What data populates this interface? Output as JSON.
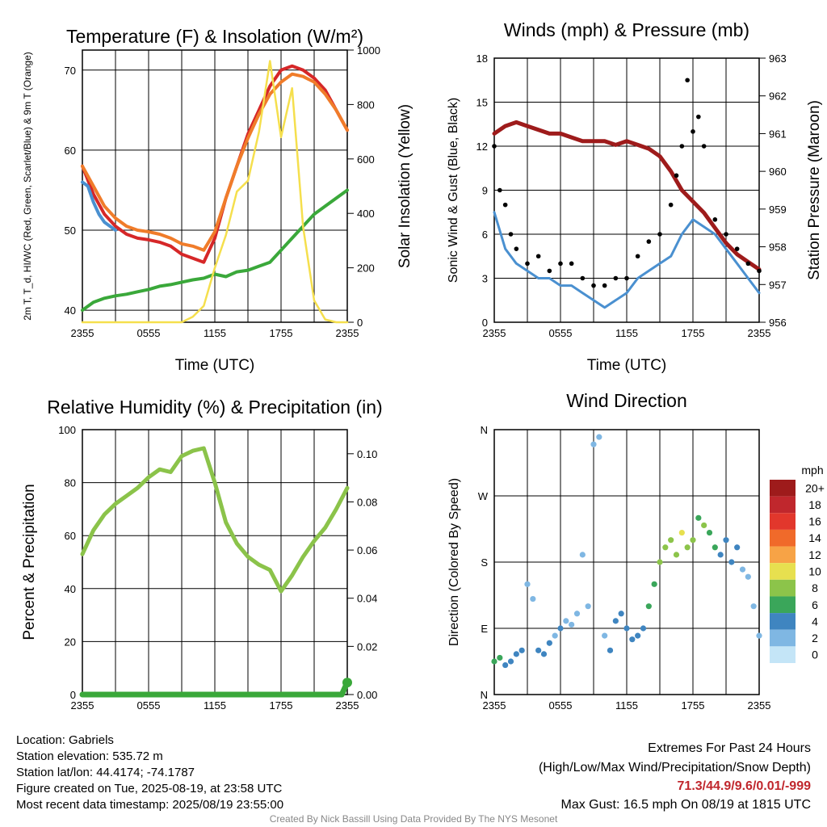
{
  "chart_data": [
    {
      "type": "line",
      "title": "Temperature (F) & Insolation (W/m²)",
      "xlabel": "Time (UTC)",
      "ylabel": "2m T, T_d, HI/WC (Red, Green, Scarlet/Blue) & 9m T (Orange)",
      "y2label": "Solar Insolation (Yellow)",
      "x_ticks": [
        "2355",
        "0555",
        "1155",
        "1755",
        "2355"
      ],
      "y_ticks": [
        40,
        50,
        60,
        70
      ],
      "y2_ticks": [
        0,
        200,
        400,
        600,
        800,
        1000
      ],
      "ylim": [
        38.5,
        72.5
      ],
      "y2lim": [
        0,
        1000
      ],
      "grid": true,
      "series": [
        {
          "color": "#d62728",
          "axis": "left",
          "x": [
            0,
            1,
            2,
            3,
            4,
            5,
            6,
            7,
            8,
            9,
            10,
            11,
            12,
            13,
            14,
            15,
            16,
            17,
            18,
            19,
            20,
            21,
            22,
            23,
            24
          ],
          "values": [
            58,
            54.5,
            52,
            50.5,
            49.5,
            49,
            48.8,
            48.5,
            48,
            47,
            46.5,
            46,
            49,
            54,
            58,
            62,
            65,
            68,
            70,
            70.5,
            70,
            69,
            67.5,
            65,
            62.5
          ]
        },
        {
          "color": "#f07c2a",
          "axis": "left",
          "x": [
            0,
            1,
            2,
            3,
            4,
            5,
            6,
            7,
            8,
            9,
            10,
            11,
            12,
            13,
            14,
            15,
            16,
            17,
            18,
            19,
            20,
            21,
            22,
            23,
            24
          ],
          "values": [
            58,
            55.5,
            53,
            51.5,
            50.5,
            50,
            49.8,
            49.5,
            49,
            48.3,
            48,
            47.5,
            49.8,
            54,
            58,
            61.5,
            64.5,
            67,
            68.5,
            69.5,
            69.2,
            68.5,
            67,
            65,
            62.5
          ]
        },
        {
          "color": "#3aa83a",
          "axis": "left",
          "x": [
            0,
            1,
            2,
            3,
            4,
            5,
            6,
            7,
            8,
            9,
            10,
            11,
            12,
            13,
            14,
            15,
            16,
            17,
            18,
            19,
            20,
            21,
            22,
            23,
            24
          ],
          "values": [
            40,
            41,
            41.5,
            41.8,
            42,
            42.3,
            42.6,
            43,
            43.2,
            43.5,
            43.8,
            44,
            44.5,
            44.2,
            44.8,
            45,
            45.5,
            46,
            47.5,
            49,
            50.5,
            52,
            53,
            54,
            55
          ]
        },
        {
          "color": "#4a90d0",
          "axis": "left",
          "x": [
            0,
            0.5,
            1,
            1.5,
            2,
            3
          ],
          "values": [
            56,
            55.5,
            53.5,
            52,
            51,
            50
          ]
        },
        {
          "color": "#f5df4d",
          "axis": "right",
          "x": [
            0,
            1,
            2,
            3,
            4,
            5,
            6,
            7,
            8,
            9,
            10,
            11,
            12,
            13,
            14,
            15,
            16,
            17,
            18,
            19,
            20,
            21,
            22,
            23,
            24
          ],
          "values": [
            0,
            0,
            0,
            0,
            0,
            0,
            0,
            0,
            0,
            0,
            20,
            60,
            200,
            320,
            480,
            520,
            700,
            960,
            680,
            860,
            350,
            80,
            10,
            0,
            0
          ]
        }
      ]
    },
    {
      "type": "line",
      "title": "Winds (mph) & Pressure (mb)",
      "xlabel": "Time (UTC)",
      "ylabel": "Sonic Wind & Gust (Blue, Black)",
      "y2label": "Station Pressure (Maroon)",
      "x_ticks": [
        "2355",
        "0555",
        "1155",
        "1755",
        "2355"
      ],
      "y_ticks": [
        0,
        3,
        6,
        9,
        12,
        15,
        18
      ],
      "y2_ticks": [
        956,
        957,
        958,
        959,
        960,
        961,
        962,
        963
      ],
      "ylim": [
        0,
        18
      ],
      "y2lim": [
        956,
        963
      ],
      "grid": true,
      "series": [
        {
          "name": "",
          "color": "#9e1b1b",
          "axis": "right",
          "x": [
            0,
            1,
            2,
            3,
            4,
            5,
            6,
            7,
            8,
            9,
            10,
            11,
            12,
            13,
            14,
            15,
            16,
            17,
            18,
            19,
            20,
            21,
            22,
            23,
            24
          ],
          "values": [
            961,
            961.2,
            961.3,
            961.2,
            961.1,
            961,
            961,
            960.9,
            960.8,
            960.8,
            960.8,
            960.7,
            960.8,
            960.7,
            960.6,
            960.4,
            960,
            959.5,
            959.2,
            958.9,
            958.5,
            958.1,
            957.8,
            957.6,
            957.4
          ]
        },
        {
          "name": "",
          "color": "#4a90d0",
          "axis": "left",
          "x": [
            0,
            1,
            2,
            3,
            4,
            5,
            6,
            7,
            8,
            9,
            10,
            11,
            12,
            13,
            14,
            15,
            16,
            17,
            18,
            19,
            20,
            21,
            22,
            23,
            24
          ],
          "values": [
            7.5,
            5,
            4,
            3.5,
            3,
            3,
            2.5,
            2.5,
            2,
            1.5,
            1,
            1.5,
            2,
            3,
            3.5,
            4,
            4.5,
            6,
            7,
            6.5,
            6,
            5,
            4,
            3,
            2
          ]
        },
        {
          "name": "",
          "color": "#000000",
          "axis": "left",
          "mode": "points",
          "x": [
            0,
            0.5,
            1,
            1.5,
            2,
            3,
            4,
            5,
            6,
            7,
            8,
            9,
            10,
            11,
            12,
            13,
            14,
            15,
            16,
            16.5,
            17,
            17.5,
            18,
            18.5,
            19,
            20,
            21,
            22,
            23,
            24
          ],
          "values": [
            12,
            9,
            8,
            6,
            5,
            4,
            4.5,
            3.5,
            4,
            4,
            3,
            2.5,
            2.5,
            3,
            3,
            4.5,
            5.5,
            6,
            8,
            10,
            12,
            16.5,
            13,
            14,
            12,
            7,
            6,
            5,
            4,
            3.5
          ]
        }
      ]
    },
    {
      "type": "line",
      "title": "Relative Humidity (%) & Precipitation (in)",
      "ylabel": "Percent & Precipitation",
      "x_ticks": [
        "2355",
        "0555",
        "1155",
        "1755",
        "2355"
      ],
      "y_ticks": [
        0,
        20,
        40,
        60,
        80,
        100
      ],
      "y2_ticks": [
        "0.00",
        "0.02",
        "0.04",
        "0.06",
        "0.08",
        "0.10"
      ],
      "ylim": [
        0,
        100
      ],
      "y2lim": [
        0,
        0.11
      ],
      "grid": true,
      "series": [
        {
          "name": "",
          "color": "#8bc34a",
          "axis": "left",
          "x": [
            0,
            1,
            2,
            3,
            4,
            5,
            6,
            7,
            8,
            9,
            10,
            11,
            12,
            13,
            14,
            15,
            16,
            17,
            18,
            19,
            20,
            21,
            22,
            23,
            24
          ],
          "values": [
            53,
            62,
            68,
            72,
            75,
            78,
            82,
            85,
            84,
            90,
            92,
            93,
            80,
            65,
            57,
            52,
            49,
            47,
            39,
            45,
            52,
            58,
            63,
            70,
            78
          ]
        },
        {
          "name": "",
          "color": "#3aa83a",
          "axis": "right",
          "x": [
            0,
            23.5,
            24
          ],
          "values": [
            0,
            0,
            0.005
          ]
        }
      ]
    },
    {
      "type": "scatter",
      "title": "Wind Direction",
      "ylabel": "Direction (Colored By Speed)",
      "x_ticks": [
        "2355",
        "0555",
        "1155",
        "1755",
        "2355"
      ],
      "y_ticks": [
        "N",
        "E",
        "S",
        "W",
        "N"
      ],
      "ylim": [
        0,
        360
      ],
      "grid": true,
      "legend": {
        "title": "mph",
        "labels": [
          "20+",
          "18",
          "16",
          "14",
          "12",
          "10",
          "8",
          "6",
          "4",
          "2",
          "0"
        ],
        "colors": [
          "#9e1b1b",
          "#c0272d",
          "#e2372c",
          "#f06a2a",
          "#f7a346",
          "#e7e04f",
          "#8cc44a",
          "#3aa65a",
          "#3f85c0",
          "#7fb7e3",
          "#c4e5f7"
        ]
      },
      "points": {
        "x": [
          0,
          0.5,
          1,
          1.5,
          2,
          2.5,
          3,
          3.5,
          4,
          4.5,
          5,
          5.5,
          6,
          6.5,
          7,
          7.5,
          8,
          8.5,
          9,
          9.5,
          10,
          10.5,
          11,
          11.5,
          12,
          12.5,
          13,
          13.5,
          14,
          14.5,
          15,
          15.5,
          16,
          16.5,
          17,
          17.5,
          18,
          18.5,
          19,
          19.5,
          20,
          20.5,
          21,
          21.5,
          22,
          22.5,
          23,
          23.5,
          24
        ],
        "dir": [
          45,
          50,
          40,
          45,
          55,
          60,
          150,
          130,
          60,
          55,
          70,
          80,
          90,
          100,
          95,
          110,
          190,
          120,
          340,
          350,
          80,
          60,
          100,
          110,
          90,
          75,
          80,
          90,
          120,
          150,
          180,
          200,
          210,
          190,
          220,
          200,
          210,
          240,
          230,
          220,
          200,
          190,
          210,
          180,
          200,
          170,
          160,
          120,
          80
        ],
        "speed": [
          6,
          5,
          4,
          3,
          3,
          3,
          2,
          2,
          3,
          3,
          3,
          2,
          3,
          2,
          2,
          2,
          1,
          2,
          1,
          1,
          2,
          3,
          3,
          3,
          3,
          3,
          4,
          4,
          5,
          6,
          7,
          8,
          8,
          7,
          9,
          8,
          8,
          6,
          7,
          6,
          5,
          4,
          4,
          3,
          3,
          2,
          2,
          2,
          2
        ]
      }
    }
  ],
  "footer": {
    "location": "Location: Gabriels",
    "elevation": "Station elevation: 535.72 m",
    "latlon": "Station lat/lon: 44.4174; -74.1787",
    "created": "Figure created on Tue, 2025-08-19, at 23:58 UTC",
    "recent": "Most recent data timestamp: 2025/08/19 23:55:00",
    "extremes_title": "Extremes For Past 24 Hours",
    "extremes_desc": "(High/Low/Max Wind/Precipitation/Snow Depth)",
    "extremes_values": "71.3/44.9/9.6/0.01/-999",
    "max_gust": "Max Gust: 16.5 mph On 08/19 at 1815 UTC",
    "credit": "Created By Nick Bassill Using Data Provided By The NYS Mesonet"
  }
}
